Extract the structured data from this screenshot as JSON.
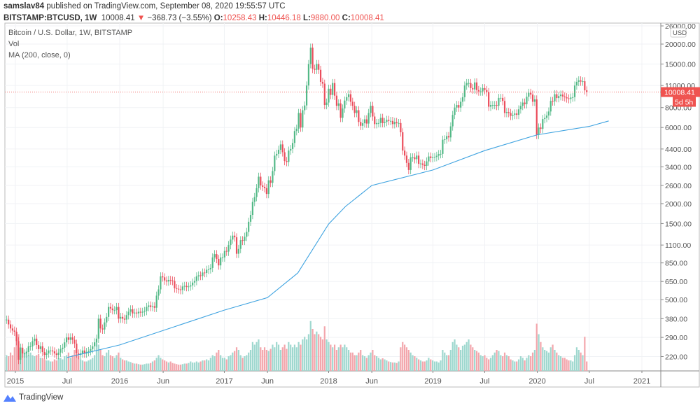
{
  "header": {
    "publisher": "samslav84",
    "published_text": "published on TradingView.com, September 08, 2020 19:55:57 UTC",
    "symbol": "BITSTAMP:BTCUSD, 1W",
    "last": "10008.41",
    "change": "−368.73 (−3.55%)",
    "o_label": "O:",
    "o": "10258.43",
    "h_label": "H:",
    "h": "10446.18",
    "l_label": "L:",
    "l": "9880.00",
    "c_label": "C:",
    "c": "10008.41"
  },
  "legend": {
    "title": "Bitcoin / U.S. Dollar, 1W, BITSTAMP",
    "vol": "Vol",
    "ma": "MA (200, close, 0)"
  },
  "footer": {
    "logo": "TradingView"
  },
  "colors": {
    "up": "#53b987",
    "down": "#eb4d5c",
    "vol_up": "#9fd8cf",
    "vol_down": "#f3a6ac",
    "ma": "#3fa3e0",
    "price_label": "#ef5350"
  },
  "chart_data": {
    "type": "candlestick",
    "yscale": "log",
    "currency": "USD",
    "ylim": [
      180,
      27000
    ],
    "yticks": [
      26000,
      20000,
      15000,
      11000,
      8000,
      6000,
      4400,
      3400,
      2600,
      2000,
      1500,
      1100,
      850,
      650,
      500,
      380,
      290,
      220
    ],
    "ytick_labels": [
      "26000.00",
      "20000.00",
      "15000.00",
      "11000.00",
      "8000.00",
      "6000.00",
      "4400.00",
      "3400.00",
      "2600.00",
      "2000.00",
      "1500.00",
      "1100.00",
      "850.00",
      "650.00",
      "500.00",
      "380.00",
      "290.00",
      "220.00"
    ],
    "xticks": [
      "2015",
      "Jul",
      "2016",
      "Jun",
      "2017",
      "Jun",
      "2018",
      "Jun",
      "2019",
      "Jul",
      "2020",
      "Jul",
      "2021"
    ],
    "xtick_dates": [
      "2015-01-01",
      "2015-07-01",
      "2016-01-01",
      "2016-06-01",
      "2017-01-01",
      "2017-06-01",
      "2018-01-01",
      "2018-06-01",
      "2019-01-01",
      "2019-07-01",
      "2020-01-01",
      "2020-07-01",
      "2021-01-01"
    ],
    "first_week": "2014-12-01",
    "last_price": "10008.41",
    "countdown": "5d 5h",
    "last_open": 10258.43,
    "weekly_close": [
      375,
      350,
      330,
      320,
      315,
      275,
      210,
      250,
      230,
      230,
      235,
      255,
      255,
      275,
      285,
      260,
      245,
      255,
      235,
      225,
      230,
      240,
      240,
      237,
      230,
      225,
      233,
      245,
      250,
      270,
      290,
      280,
      290,
      280,
      265,
      230,
      225,
      230,
      240,
      230,
      235,
      238,
      245,
      255,
      270,
      285,
      380,
      330,
      325,
      360,
      390,
      450,
      440,
      430,
      430,
      450,
      380,
      390,
      380,
      375,
      400,
      420,
      435,
      410,
      415,
      410,
      420,
      415,
      420,
      425,
      450,
      460,
      450,
      455,
      445,
      530,
      580,
      700,
      690,
      660,
      650,
      665,
      660,
      655,
      590,
      585,
      580,
      575,
      605,
      610,
      600,
      605,
      615,
      640,
      655,
      700,
      710,
      705,
      740,
      735,
      770,
      775,
      790,
      920,
      965,
      900,
      820,
      920,
      920,
      1010,
      1000,
      1100,
      1190,
      1260,
      1230,
      970,
      1040,
      1180,
      1170,
      1240,
      1330,
      1540,
      1700,
      2050,
      2200,
      2500,
      2950,
      2600,
      2550,
      2500,
      2300,
      2800,
      2700,
      3200,
      4000,
      4100,
      4350,
      4700,
      4200,
      3700,
      3650,
      4300,
      4400,
      4800,
      5700,
      5900,
      7400,
      6000,
      7700,
      8250,
      11000,
      15000,
      19000,
      14000,
      13800,
      15000,
      13800,
      11600,
      11300,
      8300,
      8600,
      10500,
      9600,
      11400,
      9500,
      8200,
      8500,
      6900,
      7900,
      8850,
      9300,
      9700,
      8700,
      8200,
      7400,
      7700,
      6500,
      6150,
      6380,
      6750,
      6350,
      7400,
      8200,
      7030,
      6300,
      6400,
      6400,
      6900,
      6400,
      6500,
      6700,
      6600,
      6600,
      6300,
      6500,
      6400,
      6400,
      5600,
      4300,
      4000,
      3600,
      3250,
      3900,
      3900,
      3800,
      4000,
      3550,
      3570,
      3500,
      3450,
      3680,
      3950,
      3860,
      3900,
      3920,
      3990,
      4090,
      4100,
      5030,
      5060,
      5300,
      5200,
      6100,
      7200,
      8000,
      8300,
      8000,
      8700,
      9300,
      11000,
      11400,
      11400,
      10600,
      10400,
      11500,
      10300,
      10100,
      10100,
      10600,
      10300,
      10000,
      8100,
      8300,
      8300,
      8300,
      8200,
      9200,
      9200,
      8800,
      7400,
      7500,
      7400,
      7100,
      7200,
      7350,
      7200,
      7800,
      8200,
      8600,
      8400,
      9350,
      9900,
      9650,
      8700,
      9000,
      5400,
      6000,
      5880,
      6780,
      6890,
      7130,
      7560,
      8800,
      8750,
      9700,
      9180,
      9450,
      9650,
      9390,
      9290,
      9140,
      9050,
      9250,
      9300,
      11000,
      11600,
      11850,
      11650,
      11700,
      10258.43,
      10008.41
    ],
    "volume_relative": [
      30,
      28,
      35,
      30,
      45,
      60,
      70,
      45,
      40,
      35,
      38,
      30,
      35,
      30,
      28,
      30,
      32,
      25,
      25,
      22,
      20,
      20,
      18,
      18,
      22,
      20,
      25,
      25,
      22,
      28,
      30,
      35,
      25,
      30,
      40,
      32,
      28,
      22,
      20,
      18,
      18,
      20,
      22,
      25,
      30,
      55,
      50,
      40,
      30,
      28,
      35,
      40,
      30,
      28,
      25,
      30,
      35,
      25,
      22,
      20,
      20,
      18,
      17,
      15,
      14,
      14,
      13,
      12,
      12,
      13,
      14,
      14,
      15,
      18,
      20,
      25,
      30,
      25,
      22,
      20,
      18,
      16,
      18,
      15,
      14,
      13,
      12,
      12,
      13,
      14,
      14,
      15,
      18,
      16,
      16,
      18,
      16,
      18,
      20,
      20,
      22,
      20,
      25,
      30,
      28,
      35,
      40,
      30,
      25,
      25,
      22,
      28,
      30,
      35,
      38,
      45,
      40,
      30,
      25,
      28,
      30,
      35,
      40,
      55,
      50,
      55,
      60,
      45,
      40,
      45,
      40,
      38,
      42,
      50,
      45,
      55,
      50,
      40,
      45,
      50,
      42,
      55,
      50,
      45,
      50,
      45,
      55,
      50,
      60,
      65,
      60,
      70,
      95,
      80,
      70,
      75,
      70,
      65,
      60,
      85,
      60,
      55,
      50,
      45,
      50,
      40,
      45,
      50,
      45,
      50,
      45,
      40,
      35,
      35,
      30,
      30,
      35,
      40,
      30,
      28,
      25,
      30,
      35,
      40,
      30,
      28,
      25,
      22,
      24,
      22,
      20,
      18,
      17,
      16,
      16,
      15,
      18,
      45,
      55,
      50,
      45,
      40,
      35,
      30,
      28,
      25,
      22,
      20,
      18,
      18,
      20,
      25,
      22,
      20,
      18,
      18,
      16,
      20,
      40,
      35,
      30,
      30,
      40,
      55,
      60,
      50,
      45,
      40,
      48,
      50,
      55,
      60,
      50,
      45,
      40,
      38,
      35,
      30,
      28,
      30,
      25,
      22,
      25,
      30,
      35,
      40,
      38,
      30,
      28,
      35,
      30,
      28,
      22,
      20,
      18,
      18,
      22,
      28,
      25,
      20,
      25,
      30,
      28,
      35,
      40,
      90,
      70,
      55,
      45,
      40,
      38,
      35,
      45,
      50,
      40,
      35,
      30,
      28,
      25,
      25,
      22,
      20,
      20,
      18,
      30,
      45,
      40,
      35,
      30,
      65,
      18
    ],
    "ma200": [
      [
        "2015-07-01",
        217
      ],
      [
        "2016-01-01",
        260
      ],
      [
        "2017-01-01",
        430
      ],
      [
        "2017-06-01",
        515
      ],
      [
        "2017-09-15",
        735
      ],
      [
        "2018-01-01",
        1490
      ],
      [
        "2018-03-01",
        1920
      ],
      [
        "2018-06-01",
        2600
      ],
      [
        "2019-01-01",
        3250
      ],
      [
        "2019-07-01",
        4300
      ],
      [
        "2020-01-01",
        5400
      ],
      [
        "2020-07-01",
        6100
      ],
      [
        "2020-09-07",
        6600
      ]
    ]
  }
}
